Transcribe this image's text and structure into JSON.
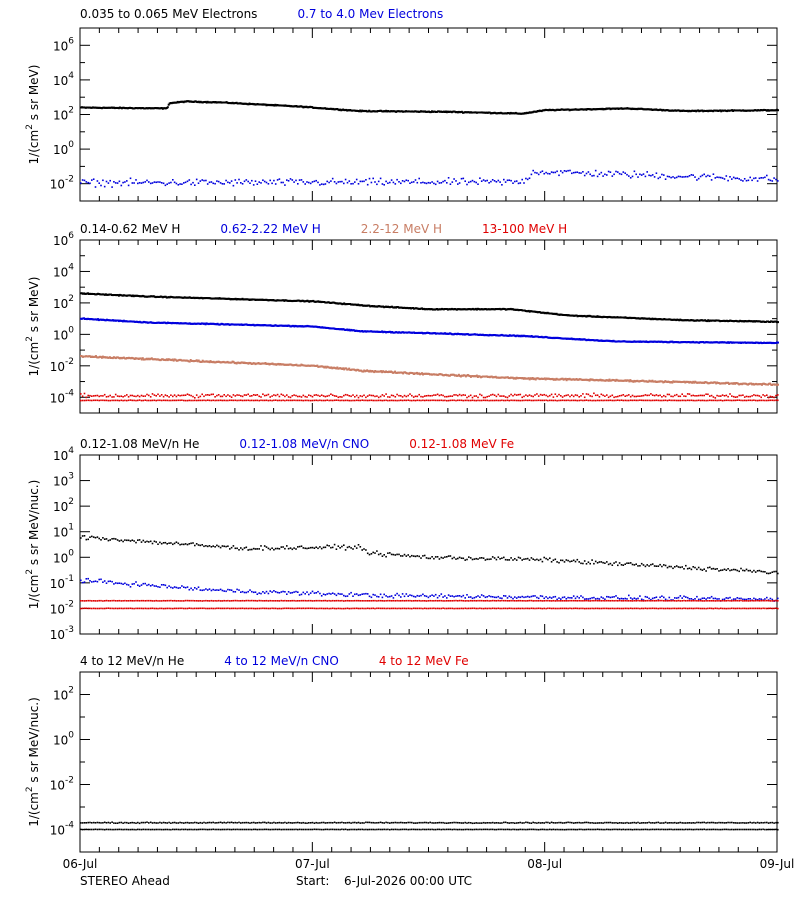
{
  "colors": {
    "black": "#000000",
    "blue": "#0000dd",
    "tan": "#c87d64",
    "red": "#e00000"
  },
  "footer": {
    "spacecraft": "STEREO Ahead",
    "start_label": "Start:",
    "start_value": "6-Jul-2026 00:00 UTC"
  },
  "chart_data": [
    {
      "type": "scatter",
      "title_items": [
        {
          "text": "0.035 to 0.065 MeV Electrons",
          "color": "black"
        },
        {
          "text": "0.7 to 4.0 Mev Electrons",
          "color": "blue"
        }
      ],
      "ylabel_main": "1/(cm",
      "ylabel_sup": "2",
      "ylabel_rest": " s sr MeV)",
      "ylim_exp": [
        -3,
        7
      ],
      "yticks": [
        {
          "base": "10",
          "exp": "6",
          "e": 6
        },
        {
          "base": "10",
          "exp": "4",
          "e": 4
        },
        {
          "base": "10",
          "exp": "2",
          "e": 2
        },
        {
          "base": "10",
          "exp": "0",
          "e": 0
        },
        {
          "base": "10",
          "exp": "-2",
          "e": -2
        }
      ],
      "x_range_days": [
        0,
        3
      ],
      "series": [
        {
          "color": "black",
          "style": "line",
          "log_points": [
            [
              0,
              2.4
            ],
            [
              0.37,
              2.35
            ],
            [
              0.38,
              2.65
            ],
            [
              0.45,
              2.75
            ],
            [
              0.6,
              2.7
            ],
            [
              0.95,
              2.45
            ],
            [
              1.2,
              2.2
            ],
            [
              1.6,
              2.15
            ],
            [
              1.9,
              2.05
            ],
            [
              2.0,
              2.25
            ],
            [
              2.35,
              2.35
            ],
            [
              2.6,
              2.2
            ],
            [
              3.0,
              2.25
            ]
          ],
          "jitter": 0.04
        },
        {
          "color": "blue",
          "style": "dots",
          "log_points": [
            [
              0,
              -1.95
            ],
            [
              1.9,
              -1.9
            ],
            [
              1.95,
              -1.3
            ],
            [
              2.3,
              -1.45
            ],
            [
              3.0,
              -1.75
            ]
          ],
          "jitter": 0.3
        }
      ]
    },
    {
      "type": "scatter",
      "title_items": [
        {
          "text": "0.14-0.62 MeV H",
          "color": "black"
        },
        {
          "text": "0.62-2.22 MeV H",
          "color": "blue"
        },
        {
          "text": "2.2-12 MeV H",
          "color": "tan"
        },
        {
          "text": "13-100 MeV H",
          "color": "red"
        }
      ],
      "ylabel_main": "1/(cm",
      "ylabel_sup": "2",
      "ylabel_rest": " s sr MeV)",
      "ylim_exp": [
        -5,
        6
      ],
      "yticks": [
        {
          "base": "10",
          "exp": "6",
          "e": 6
        },
        {
          "base": "10",
          "exp": "4",
          "e": 4
        },
        {
          "base": "10",
          "exp": "2",
          "e": 2
        },
        {
          "base": "10",
          "exp": "0",
          "e": 0
        },
        {
          "base": "10",
          "exp": "-2",
          "e": -2
        },
        {
          "base": "10",
          "exp": "-4",
          "e": -4
        }
      ],
      "x_range_days": [
        0,
        3
      ],
      "series": [
        {
          "color": "black",
          "style": "line",
          "log_points": [
            [
              0,
              2.6
            ],
            [
              0.3,
              2.4
            ],
            [
              1.0,
              2.1
            ],
            [
              1.25,
              1.8
            ],
            [
              1.5,
              1.6
            ],
            [
              1.85,
              1.6
            ],
            [
              2.1,
              1.2
            ],
            [
              2.6,
              0.9
            ],
            [
              3.0,
              0.8
            ]
          ],
          "jitter": 0.04
        },
        {
          "color": "blue",
          "style": "line",
          "log_points": [
            [
              0,
              1.0
            ],
            [
              0.3,
              0.75
            ],
            [
              1.0,
              0.5
            ],
            [
              1.2,
              0.2
            ],
            [
              1.9,
              -0.1
            ],
            [
              2.3,
              -0.45
            ],
            [
              3.0,
              -0.55
            ]
          ],
          "jitter": 0.04
        },
        {
          "color": "tan",
          "style": "line",
          "log_points": [
            [
              0,
              -1.4
            ],
            [
              0.5,
              -1.7
            ],
            [
              1.0,
              -2.0
            ],
            [
              1.2,
              -2.3
            ],
            [
              1.6,
              -2.6
            ],
            [
              1.9,
              -2.8
            ],
            [
              2.5,
              -3.0
            ],
            [
              3.0,
              -3.2
            ]
          ],
          "jitter": 0.07
        },
        {
          "color": "red",
          "style": "dots",
          "log_points": [
            [
              0,
              -3.9
            ],
            [
              3.0,
              -3.9
            ]
          ],
          "jitter": 0.18
        },
        {
          "color": "red",
          "style": "dots",
          "log_points": [
            [
              0,
              -4.2
            ],
            [
              3.0,
              -4.2
            ]
          ],
          "jitter": 0.02
        }
      ]
    },
    {
      "type": "scatter",
      "title_items": [
        {
          "text": "0.12-1.08 MeV/n He",
          "color": "black"
        },
        {
          "text": "0.12-1.08 MeV/n CNO",
          "color": "blue"
        },
        {
          "text": "0.12-1.08 MeV Fe",
          "color": "red"
        }
      ],
      "ylabel_main": "1/(cm",
      "ylabel_sup": "2",
      "ylabel_rest": " s sr MeV/nuc.)",
      "ylim_exp": [
        -3,
        4
      ],
      "yticks": [
        {
          "base": "10",
          "exp": "4",
          "e": 4
        },
        {
          "base": "10",
          "exp": "3",
          "e": 3
        },
        {
          "base": "10",
          "exp": "2",
          "e": 2
        },
        {
          "base": "10",
          "exp": "1",
          "e": 1
        },
        {
          "base": "10",
          "exp": "0",
          "e": 0,
          "plain": "1.0",
          "sup_text": "0"
        },
        {
          "base": "10",
          "exp": "-1",
          "e": -1
        },
        {
          "base": "10",
          "exp": "-2",
          "e": -2
        },
        {
          "base": "10",
          "exp": "-3",
          "e": -3
        }
      ],
      "x_range_days": [
        0,
        3
      ],
      "series": [
        {
          "color": "black",
          "style": "dots",
          "log_points": [
            [
              0,
              0.8
            ],
            [
              0.3,
              0.6
            ],
            [
              0.7,
              0.35
            ],
            [
              1.2,
              0.4
            ],
            [
              1.25,
              0.15
            ],
            [
              1.5,
              0.0
            ],
            [
              2.0,
              -0.1
            ],
            [
              2.5,
              -0.35
            ],
            [
              3.0,
              -0.6
            ]
          ],
          "jitter": 0.12
        },
        {
          "color": "blue",
          "style": "dots",
          "log_points": [
            [
              0,
              -0.9
            ],
            [
              0.6,
              -1.3
            ],
            [
              1.3,
              -1.5
            ],
            [
              3.0,
              -1.65
            ]
          ],
          "jitter": 0.12
        },
        {
          "color": "red",
          "style": "dots",
          "log_points": [
            [
              0,
              -1.7
            ],
            [
              3.0,
              -1.7
            ]
          ],
          "jitter": 0.01
        },
        {
          "color": "red",
          "style": "dots",
          "log_points": [
            [
              0,
              -2.0
            ],
            [
              3.0,
              -2.0
            ]
          ],
          "jitter": 0.01
        }
      ]
    },
    {
      "type": "scatter",
      "title_items": [
        {
          "text": "4 to 12 MeV/n He",
          "color": "black"
        },
        {
          "text": "4 to 12 MeV/n CNO",
          "color": "blue"
        },
        {
          "text": "4 to 12 MeV Fe",
          "color": "red"
        }
      ],
      "ylabel_main": "1/(cm",
      "ylabel_sup": "2",
      "ylabel_rest": " s sr MeV/nuc.)",
      "ylim_exp": [
        -5,
        3
      ],
      "yticks": [
        {
          "base": "10",
          "exp": "2",
          "e": 2
        },
        {
          "base": "10",
          "exp": "0",
          "e": 0
        },
        {
          "base": "10",
          "exp": "-2",
          "e": -2
        },
        {
          "base": "10",
          "exp": "-4",
          "e": -4
        }
      ],
      "x_range_days": [
        0,
        3
      ],
      "xticks": [
        "06-Jul",
        "07-Jul",
        "08-Jul",
        "09-Jul"
      ],
      "series": [
        {
          "color": "black",
          "style": "dots",
          "log_points": [
            [
              0,
              -3.7
            ],
            [
              3.0,
              -3.7
            ]
          ],
          "jitter": 0.03
        },
        {
          "color": "black",
          "style": "dots",
          "log_points": [
            [
              0,
              -4.0
            ],
            [
              3.0,
              -4.0
            ]
          ],
          "jitter": 0.01
        }
      ]
    }
  ]
}
